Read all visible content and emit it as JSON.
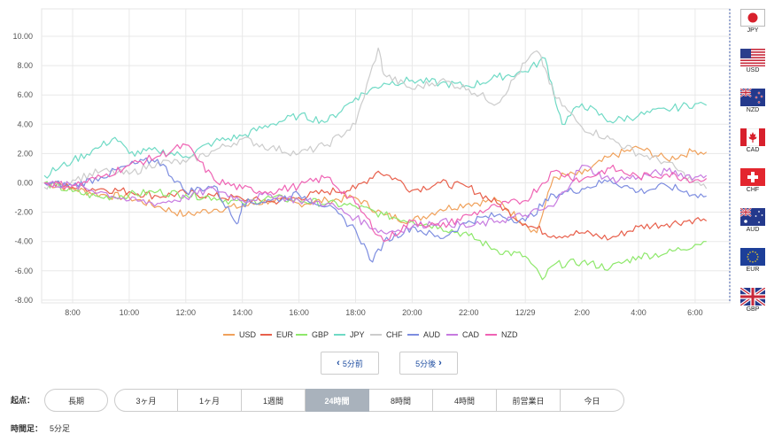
{
  "chart_data": {
    "type": "line",
    "ylim": [
      -8,
      11
    ],
    "y_ticks": [
      "10.00",
      "8.00",
      "6.00",
      "4.00",
      "2.00",
      "0.00",
      "-2.00",
      "-4.00",
      "-6.00",
      "-8.00"
    ],
    "x_ticks": [
      "8:00",
      "10:00",
      "12:00",
      "14:00",
      "16:00",
      "18:00",
      "20:00",
      "22:00",
      "12/29",
      "2:00",
      "4:00",
      "6:00"
    ],
    "x_range_hours": [
      7,
      30.4
    ],
    "grid": true,
    "legend_position": "bottom",
    "series": [
      {
        "name": "USD",
        "color": "#f0a15b",
        "hours": [
          7,
          8,
          9,
          10,
          11,
          12,
          13,
          14,
          15,
          16,
          17,
          18,
          19,
          20,
          21,
          22,
          23,
          24,
          24.4,
          25,
          26,
          27,
          28,
          29,
          30,
          30.4
        ],
        "values": [
          0,
          -0.4,
          -0.8,
          -1.0,
          -1.6,
          -2.2,
          -1.8,
          -1.6,
          -1.2,
          -1.4,
          -1.2,
          -1.0,
          -2.2,
          -2.6,
          -1.8,
          -1.4,
          -1.2,
          -2.8,
          -3.4,
          0.4,
          0.6,
          1.8,
          2.4,
          1.6,
          2.2,
          2.1
        ]
      },
      {
        "name": "EUR",
        "color": "#e8604c",
        "hours": [
          7,
          8,
          9,
          10,
          11,
          12,
          13,
          14,
          15,
          16,
          17,
          18,
          18.8,
          19.5,
          20,
          21,
          22,
          23,
          24,
          25,
          26,
          27,
          28,
          29,
          30,
          30.4
        ],
        "values": [
          0,
          -0.3,
          -0.4,
          -0.6,
          -0.9,
          -0.7,
          -0.9,
          -1.1,
          -1.3,
          -1.0,
          -0.6,
          -0.4,
          0.8,
          0.2,
          -0.5,
          0,
          -0.3,
          -1.4,
          -2.8,
          -3.6,
          -3.4,
          -3.8,
          -3.0,
          -2.8,
          -2.5,
          -2.6
        ]
      },
      {
        "name": "GBP",
        "color": "#8ee86b",
        "hours": [
          7,
          8,
          9,
          10,
          11,
          12,
          13,
          14,
          15,
          16,
          17,
          18,
          19,
          20,
          21,
          22,
          23,
          24,
          24.6,
          25,
          26,
          27,
          28,
          29,
          30,
          30.4
        ],
        "values": [
          0,
          -0.6,
          -1.0,
          -0.8,
          -0.6,
          -0.8,
          -1.0,
          -1.4,
          -1.0,
          -1.2,
          -1.4,
          -1.6,
          -2.2,
          -2.6,
          -3.0,
          -3.6,
          -4.6,
          -5.0,
          -6.6,
          -5.6,
          -5.4,
          -5.8,
          -5.0,
          -4.8,
          -4.2,
          -4.0
        ]
      },
      {
        "name": "JPY",
        "color": "#6fdac5",
        "hours": [
          7,
          8,
          9,
          9.5,
          10,
          11,
          12,
          13,
          14,
          15,
          16,
          17,
          18,
          19,
          20,
          21,
          22,
          23,
          24,
          24.7,
          25,
          25.3,
          26,
          27,
          28,
          29,
          30,
          30.4
        ],
        "values": [
          0.5,
          1.5,
          2.5,
          3.1,
          2.0,
          2.2,
          1.8,
          2.8,
          3.2,
          4.0,
          4.6,
          4.2,
          5.8,
          6.8,
          7.0,
          6.8,
          6.6,
          7.2,
          7.6,
          8.5,
          6.2,
          4.0,
          5.4,
          4.2,
          4.6,
          5.0,
          5.4,
          5.3
        ]
      },
      {
        "name": "CHF",
        "color": "#cccccc",
        "hours": [
          7,
          8,
          9,
          10,
          11,
          12,
          13,
          14,
          15,
          16,
          17,
          18,
          18.8,
          19,
          20,
          21,
          22,
          23,
          24,
          24.4,
          24.7,
          25,
          26,
          27,
          28,
          29,
          30,
          30.4
        ],
        "values": [
          -0.3,
          0.2,
          0.8,
          0.6,
          1.4,
          1.4,
          2.2,
          3.0,
          2.4,
          2.0,
          2.6,
          4.0,
          9.2,
          7.4,
          6.4,
          7.0,
          6.4,
          5.4,
          8.2,
          9.0,
          7.8,
          6.0,
          3.8,
          3.0,
          2.0,
          1.4,
          0,
          -0.4
        ]
      },
      {
        "name": "AUD",
        "color": "#7d8de0",
        "hours": [
          7,
          8,
          9,
          10,
          11,
          12,
          13,
          13.8,
          14,
          15,
          16,
          17,
          18,
          18.6,
          19,
          20,
          21,
          22,
          23,
          24,
          25,
          26,
          27,
          28,
          29,
          30,
          30.4
        ],
        "values": [
          0,
          -0.2,
          0.4,
          1.2,
          1.6,
          -0.6,
          -0.2,
          -2.8,
          -1.4,
          -1.2,
          -0.8,
          -1.6,
          -3.2,
          -5.4,
          -4.0,
          -3.0,
          -3.8,
          -2.6,
          -2.2,
          -2.6,
          -0.8,
          -0.4,
          0.2,
          -0.6,
          -0.2,
          -0.8,
          -0.9
        ]
      },
      {
        "name": "CAD",
        "color": "#c77be0",
        "hours": [
          7,
          8,
          9,
          10,
          11,
          12,
          13,
          14,
          15,
          16,
          17,
          18,
          19,
          20,
          21,
          22,
          23,
          24,
          25,
          26,
          27,
          28,
          29,
          30,
          30.4
        ],
        "values": [
          0,
          -0.2,
          -0.6,
          -1.2,
          -1.4,
          -1.0,
          -0.4,
          -1.2,
          -0.8,
          -1.2,
          -1.4,
          -2.4,
          -3.4,
          -3.0,
          -2.6,
          -3.0,
          -2.6,
          -2.2,
          -1.6,
          1.2,
          0.2,
          0.4,
          0.8,
          0.4,
          0.5
        ]
      },
      {
        "name": "NZD",
        "color": "#ef63b4",
        "hours": [
          7,
          8,
          9,
          10,
          11,
          12,
          13,
          14,
          15,
          16,
          17,
          18,
          19,
          20,
          21,
          22,
          23,
          24,
          25,
          26,
          27,
          28,
          29,
          30,
          30.4
        ],
        "values": [
          0,
          -0.2,
          0.4,
          1.2,
          1.8,
          2.6,
          0.2,
          -0.4,
          -0.6,
          -0.2,
          0.4,
          -1.4,
          -4.0,
          -2.6,
          -3.0,
          -2.2,
          -1.6,
          -1.2,
          0.8,
          0.2,
          1.0,
          0.4,
          0.6,
          0.2,
          0.3
        ]
      }
    ]
  },
  "flags": [
    {
      "code": "JPY",
      "icon": "japan-flag-icon"
    },
    {
      "code": "USD",
      "icon": "us-flag-icon"
    },
    {
      "code": "NZD",
      "icon": "new-zealand-flag-icon"
    },
    {
      "code": "CAD",
      "icon": "canada-flag-icon"
    },
    {
      "code": "CHF",
      "icon": "swiss-flag-icon"
    },
    {
      "code": "AUD",
      "icon": "australia-flag-icon"
    },
    {
      "code": "EUR",
      "icon": "eu-flag-icon"
    },
    {
      "code": "GBP",
      "icon": "uk-flag-icon"
    }
  ],
  "nav": {
    "prev_label": "5分前",
    "next_label": "5分後",
    "prev_icon": "chevron-left-icon",
    "next_icon": "chevron-right-icon"
  },
  "period": {
    "label": "起点：",
    "long_label": "長期",
    "options": [
      "3ヶ月",
      "1ヶ月",
      "1週間",
      "24時間",
      "8時間",
      "4時間",
      "前営業日",
      "今日"
    ],
    "active": "24時間"
  },
  "bar": {
    "label": "時間足：",
    "value": "5分足"
  }
}
